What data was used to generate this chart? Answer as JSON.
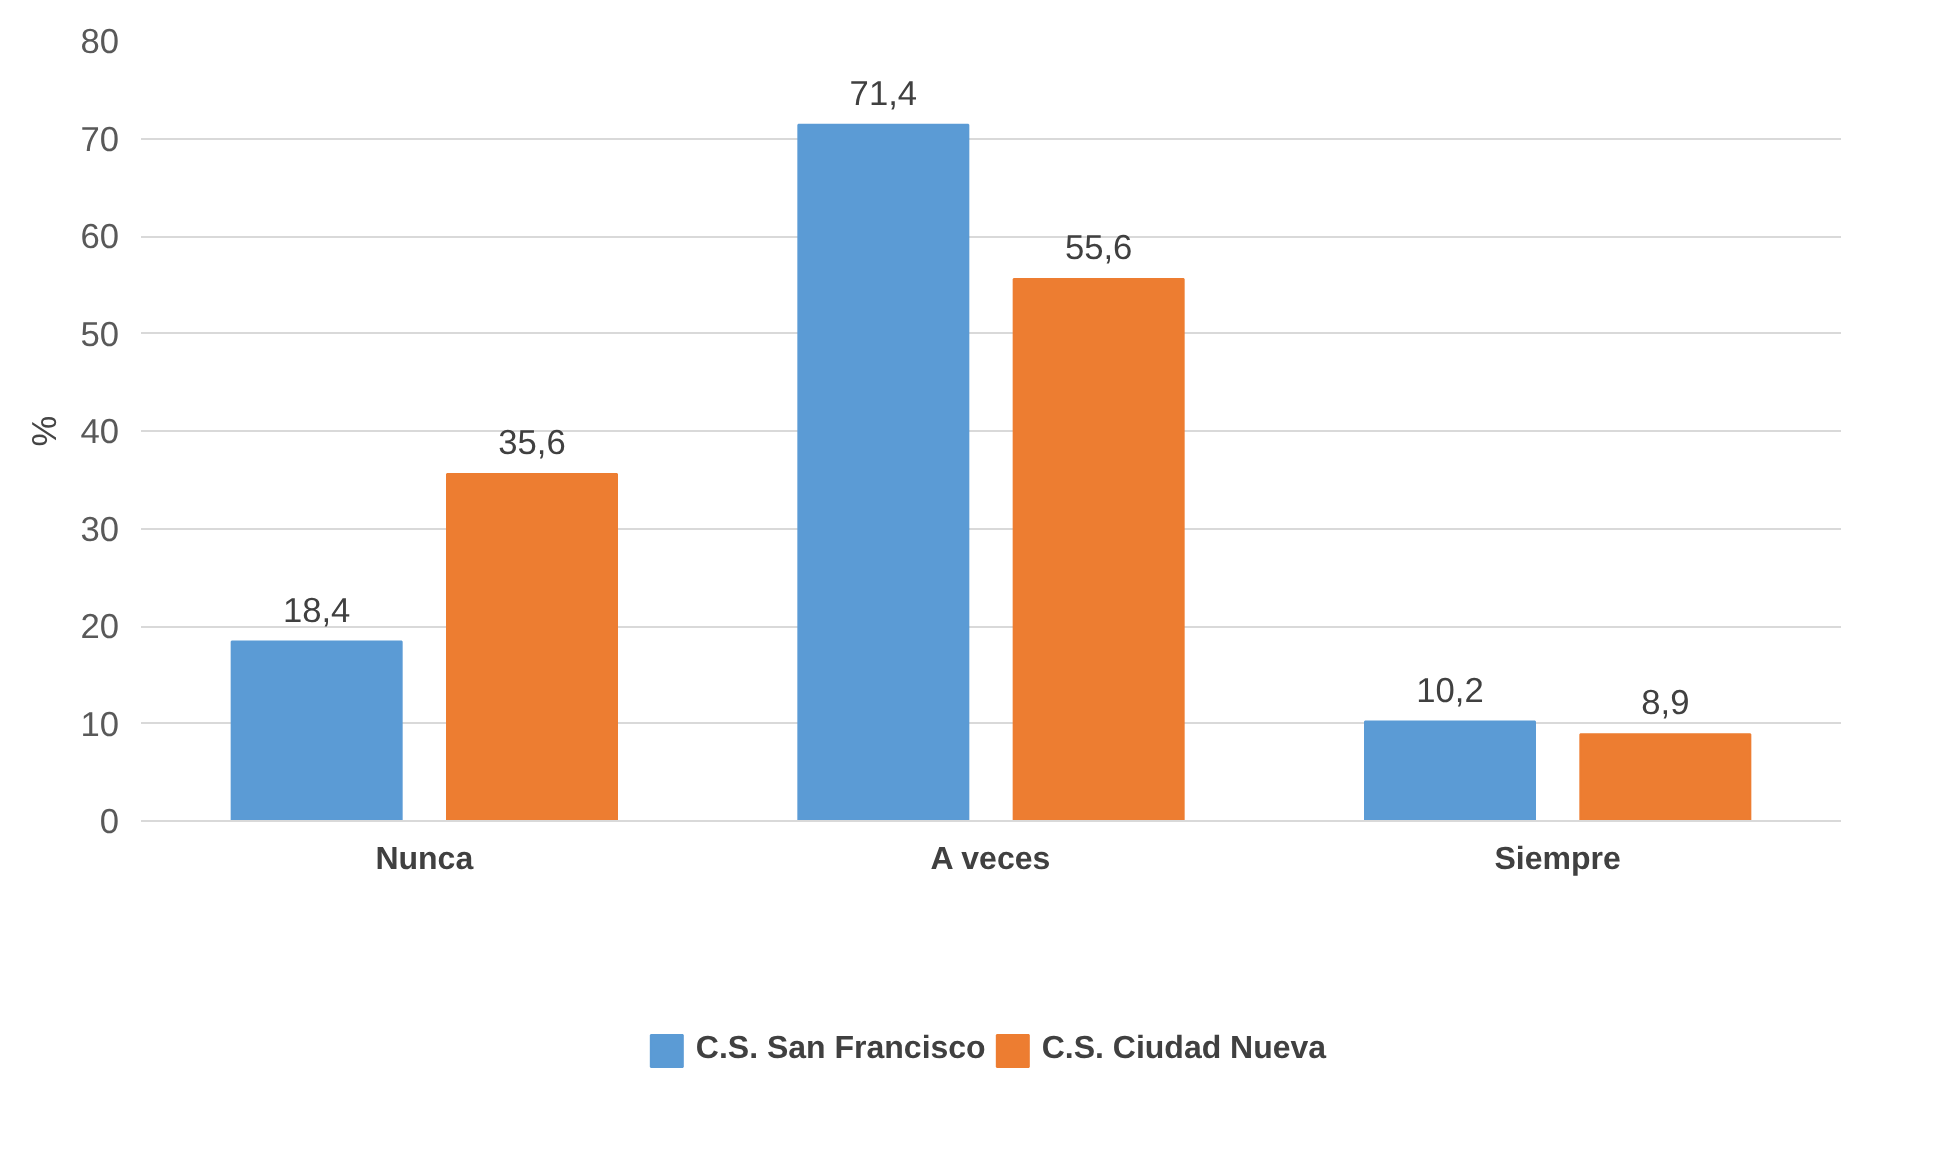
{
  "chart_data": {
    "type": "bar",
    "categories": [
      "Nunca",
      "A veces",
      "Siempre"
    ],
    "ylabel": "%",
    "ylim": [
      0,
      80
    ],
    "yticks": [
      0,
      10,
      20,
      30,
      40,
      50,
      60,
      70,
      80
    ],
    "grid": "y",
    "legend": "bottom",
    "series": [
      {
        "name": "C.S. San Francisco",
        "color": "#5b9bd5",
        "values": [
          18.4,
          71.4,
          10.2
        ],
        "value_labels": [
          "18,4",
          "71,4",
          "10,2"
        ]
      },
      {
        "name": "C.S. Ciudad Nueva",
        "color": "#ed7d31",
        "values": [
          35.6,
          55.6,
          8.9
        ],
        "value_labels": [
          "35,6",
          "55,6",
          "8,9"
        ]
      }
    ]
  }
}
